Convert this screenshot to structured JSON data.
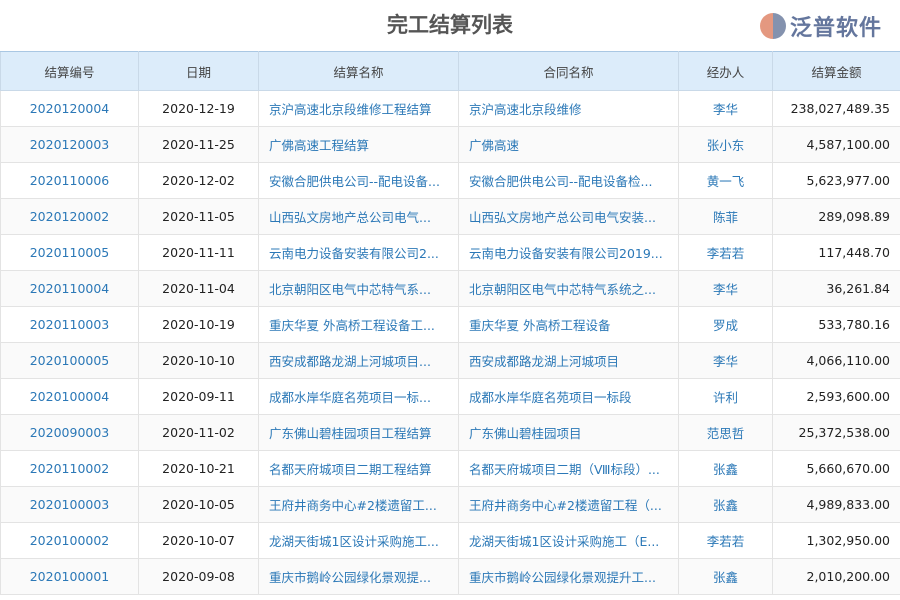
{
  "title": "完工结算列表",
  "columns": [
    "结算编号",
    "日期",
    "结算名称",
    "合同名称",
    "经办人",
    "结算金额"
  ],
  "rows": [
    [
      "2020120004",
      "2020-12-19",
      "京沪高速北京段维修工程结算",
      "京沪高速北京段维修",
      "李华",
      "238,027,489.35"
    ],
    [
      "2020120003",
      "2020-11-25",
      "广佛高速工程结算",
      "广佛高速",
      "张小东",
      "4,587,100.00"
    ],
    [
      "2020110006",
      "2020-12-02",
      "安徽合肥供电公司--配电设备...",
      "安徽合肥供电公司--配电设备检...",
      "黄一飞",
      "5,623,977.00"
    ],
    [
      "2020120002",
      "2020-11-05",
      "山西弘文房地产总公司电气...",
      "山西弘文房地产总公司电气安装...",
      "陈菲",
      "289,098.89"
    ],
    [
      "2020110005",
      "2020-11-11",
      "云南电力设备安装有限公司2...",
      "云南电力设备安装有限公司2019...",
      "李若若",
      "117,448.70"
    ],
    [
      "2020110004",
      "2020-11-04",
      "北京朝阳区电气中芯特气系...",
      "北京朝阳区电气中芯特气系统之...",
      "李华",
      "36,261.84"
    ],
    [
      "2020110003",
      "2020-10-19",
      "重庆华夏 外高桥工程设备工...",
      "重庆华夏 外高桥工程设备",
      "罗成",
      "533,780.16"
    ],
    [
      "2020100005",
      "2020-10-10",
      "西安成都路龙湖上河城项目...",
      "西安成都路龙湖上河城项目",
      "李华",
      "4,066,110.00"
    ],
    [
      "2020100004",
      "2020-09-11",
      "成都水岸华庭名苑项目一标...",
      "成都水岸华庭名苑项目一标段",
      "许利",
      "2,593,600.00"
    ],
    [
      "2020090003",
      "2020-11-02",
      "广东佛山碧桂园项目工程结算",
      "广东佛山碧桂园项目",
      "范思哲",
      "25,372,538.00"
    ],
    [
      "2020110002",
      "2020-10-21",
      "名都天府城项目二期工程结算",
      "名都天府城项目二期（Ⅷ标段）...",
      "张鑫",
      "5,660,670.00"
    ],
    [
      "2020100003",
      "2020-10-05",
      "王府井商务中心#2楼遗留工...",
      "王府井商务中心#2楼遗留工程（...",
      "张鑫",
      "4,989,833.00"
    ],
    [
      "2020100002",
      "2020-10-07",
      "龙湖天街城1区设计采购施工...",
      "龙湖天街城1区设计采购施工（E...",
      "李若若",
      "1,302,950.00"
    ],
    [
      "2020100001",
      "2020-09-08",
      "重庆市鹅岭公园绿化景观提...",
      "重庆市鹅岭公园绿化景观提升工...",
      "张鑫",
      "2,010,200.00"
    ]
  ],
  "watermark": {
    "text": "泛普软件",
    "url": "www.fanpusoft.com"
  },
  "colors": {
    "link": "#2b78b7",
    "header_bg": "#dcecfa"
  }
}
